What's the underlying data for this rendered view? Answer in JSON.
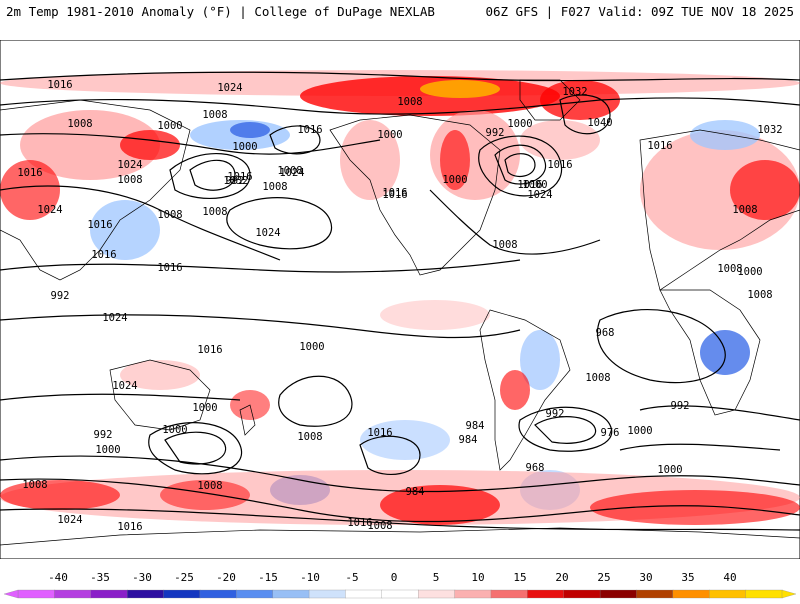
{
  "header": {
    "left_title": "2m Temp 1981-2010 Anomaly (°F) | College of DuPage NEXLAB",
    "right_title": "06Z GFS | F027 Valid: 09Z TUE NOV 18 2025"
  },
  "map": {
    "variable": "2m temperature anomaly",
    "units": "°F",
    "contour_field": "Mean sea level pressure (hPa)",
    "pressure_labels": [
      "1016",
      "1024",
      "1032",
      "1040",
      "1008",
      "1000",
      "1016",
      "1024",
      "1008",
      "1000",
      "1032",
      "1024",
      "1016",
      "1008",
      "1000",
      "1008",
      "1016",
      "1024",
      "1032",
      "1008",
      "1000",
      "992",
      "1000",
      "1016",
      "1024",
      "1016",
      "1008",
      "1016",
      "1008",
      "1000",
      "992",
      "1016",
      "1008",
      "1016",
      "1024",
      "1008",
      "1016",
      "1016",
      "1008",
      "1008",
      "1000",
      "992",
      "1016",
      "1008",
      "1024",
      "1016",
      "1000",
      "968",
      "1024",
      "1008",
      "992",
      "1000",
      "1000",
      "1008",
      "1016",
      "984",
      "992",
      "976",
      "1000",
      "968",
      "984",
      "1000",
      "984",
      "992",
      "1000",
      "1008",
      "1008",
      "1016",
      "1024",
      "1016",
      "1008"
    ],
    "legend_palette_colors": {
      "strong_warm": "#ff0000",
      "warm": "#ff9a9a",
      "cool": "#9ec5ff",
      "strong_cool": "#3f6fe8",
      "extreme_warm": "#ffa500"
    }
  },
  "colorbar": {
    "ticks": [
      "-40",
      "-35",
      "-30",
      "-25",
      "-20",
      "-15",
      "-10",
      "-5",
      "0",
      "5",
      "10",
      "15",
      "20",
      "25",
      "30",
      "35",
      "40"
    ],
    "colors": [
      "#e060ff",
      "#b43fe0",
      "#8a1fc8",
      "#2d0fa0",
      "#1436c0",
      "#3060e0",
      "#5a8ef0",
      "#98bff5",
      "#cfe2fb",
      "#ffffff",
      "#ffffff",
      "#fde0e0",
      "#fbb0b0",
      "#f57070",
      "#e81010",
      "#c00000",
      "#8b0000",
      "#b04000",
      "#ff9000",
      "#ffc000",
      "#ffe000"
    ]
  }
}
